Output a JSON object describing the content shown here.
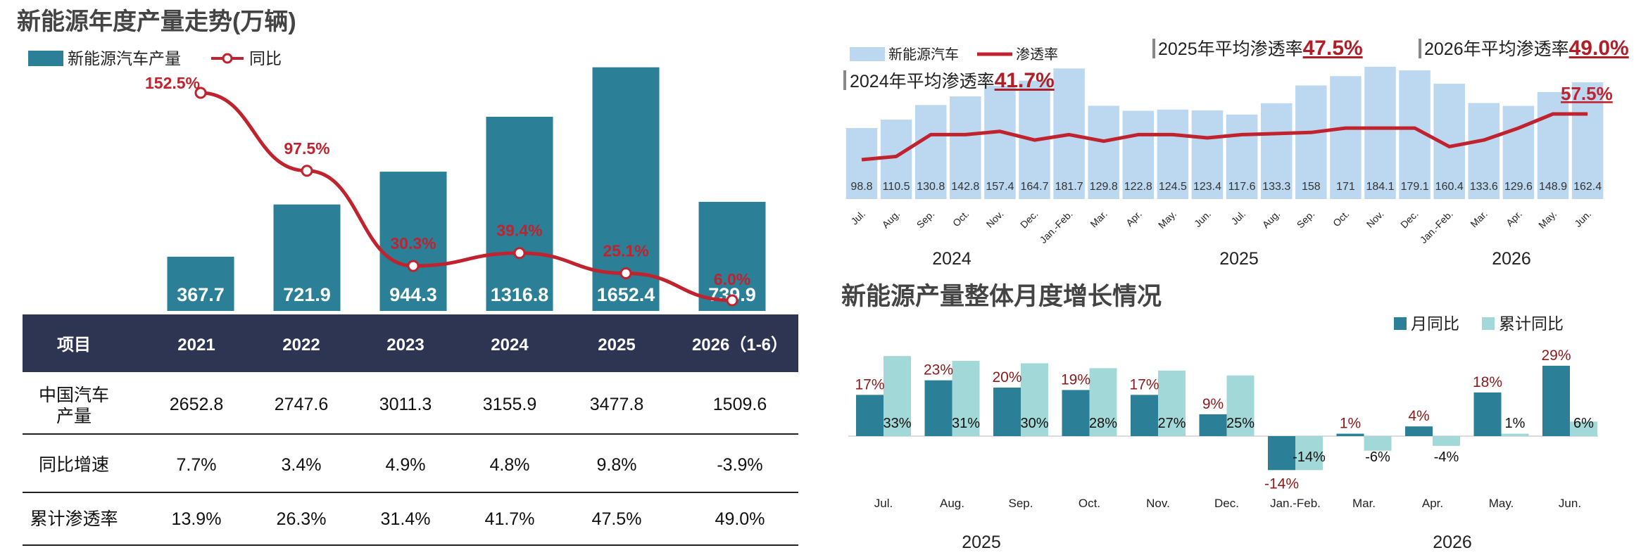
{
  "annual": {
    "title": "新能源年度产量走势(万辆)",
    "legend_bar": "新能源汽车产量",
    "legend_line": "同比",
    "bar_color": "#2b7f96",
    "line_color": "#c0232d"
  },
  "monthly_pen": {
    "legend_bar": "新能源汽车",
    "legend_line": "渗透率",
    "bar_color": "#bcd8f0",
    "line_color": "#c0232d",
    "avg_2024_prefix": "2024年平均渗透率",
    "avg_2024_value": "41.7%",
    "avg_2025_prefix": "2025年平均渗透率",
    "avg_2025_value": "47.5%",
    "avg_2026_prefix": "2026年平均渗透率",
    "avg_2026_value": "49.0%",
    "last_rate_label": "57.5%",
    "years": [
      "2024",
      "2025",
      "2026"
    ]
  },
  "growth": {
    "title": "新能源产量整体月度增长情况",
    "legend_a": "月同比",
    "legend_b": "累计同比",
    "color_a": "#2b7f96",
    "color_b": "#a3d8d8",
    "years": [
      "2025",
      "2026"
    ]
  },
  "table": {
    "header": [
      "项目",
      "2021",
      "2022",
      "2023",
      "2024",
      "2025",
      "2026（1-6）"
    ],
    "rows": [
      [
        "中国汽车产量",
        "2652.8",
        "2747.6",
        "3011.3",
        "3155.9",
        "3477.8",
        "1509.6"
      ],
      [
        "同比增速",
        "7.7%",
        "3.4%",
        "4.9%",
        "4.8%",
        "9.8%",
        "-3.9%"
      ],
      [
        "累计渗透率",
        "13.9%",
        "26.3%",
        "31.4%",
        "41.7%",
        "47.5%",
        "49.0%"
      ]
    ],
    "header_bg": "#2d3553"
  },
  "chart_data": [
    {
      "type": "bar",
      "title": "新能源年度产量走势(万辆)",
      "categories": [
        "2021",
        "2022",
        "2023",
        "2024",
        "2025",
        "2026"
      ],
      "series": [
        {
          "name": "新能源汽车产量",
          "type": "bar",
          "values": [
            367.7,
            721.9,
            944.3,
            1316.8,
            1652.4,
            739.9
          ],
          "labels": [
            "367.7",
            "721.9",
            "944.3",
            "1316.8",
            "1652.4",
            "739.9"
          ]
        },
        {
          "name": "同比",
          "type": "line",
          "values": [
            152.5,
            97.5,
            30.3,
            39.4,
            25.1,
            6.0
          ],
          "labels": [
            "152.5%",
            "97.5%",
            "30.3%",
            "39.4%",
            "25.1%",
            "6.0%"
          ]
        }
      ]
    },
    {
      "type": "bar",
      "categories": [
        "Jul.",
        "Aug.",
        "Sep.",
        "Oct.",
        "Nov.",
        "Dec.",
        "Jan.-Feb.",
        "Mar.",
        "Apr.",
        "May.",
        "Jun.",
        "Jul.",
        "Aug.",
        "Sep.",
        "Oct.",
        "Nov.",
        "Dec.",
        "Jan.-Feb.",
        "Mar.",
        "Apr.",
        "May.",
        "Jun."
      ],
      "series": [
        {
          "name": "新能源汽车",
          "type": "bar",
          "values": [
            98.8,
            110.5,
            130.8,
            142.8,
            157.4,
            164.7,
            181.7,
            129.8,
            122.8,
            124.5,
            123.4,
            117.6,
            133.3,
            158,
            171,
            184.1,
            179.1,
            160.4,
            133.6,
            129.6,
            148.9,
            162.4
          ],
          "labels": [
            "98.8",
            "110.5",
            "130.8",
            "142.8",
            "157.4",
            "164.7",
            "181.7",
            "129.8",
            "122.8",
            "124.5",
            "123.4",
            "117.6",
            "133.3",
            "158",
            "171",
            "184.1",
            "179.1",
            "160.4",
            "133.6",
            "129.6",
            "148.9",
            "162.4"
          ]
        },
        {
          "name": "渗透率",
          "type": "line",
          "values": [
            36.5,
            38.0,
            48.0,
            48.0,
            49.5,
            45.5,
            48.0,
            45.0,
            48.0,
            48.0,
            46.5,
            48.0,
            48.5,
            49.0,
            51.0,
            51.0,
            51.0,
            42.5,
            45.5,
            51.0,
            57.5,
            57.5
          ]
        }
      ],
      "annotations": [
        "2024年平均渗透率41.7%",
        "2025年平均渗透率47.5%",
        "2026年平均渗透率49.0%"
      ]
    },
    {
      "type": "bar",
      "title": "新能源产量整体月度增长情况",
      "categories": [
        "Jul.",
        "Aug.",
        "Sep.",
        "Oct.",
        "Nov.",
        "Dec.",
        "Jan.-Feb.",
        "Mar.",
        "Apr.",
        "May.",
        "Jun."
      ],
      "series": [
        {
          "name": "月同比",
          "values": [
            17,
            23,
            20,
            19,
            17,
            9,
            -14,
            1,
            4,
            18,
            29
          ],
          "labels": [
            "17%",
            "23%",
            "20%",
            "19%",
            "17%",
            "9%",
            "-14%",
            "1%",
            "4%",
            "18%",
            "29%"
          ]
        },
        {
          "name": "累计同比",
          "values": [
            33,
            31,
            30,
            28,
            27,
            25,
            -14,
            -6,
            -4,
            1,
            6
          ],
          "labels": [
            "33%",
            "31%",
            "30%",
            "28%",
            "27%",
            "25%",
            "-14%",
            "-6%",
            "-4%",
            "1%",
            "6%"
          ]
        }
      ]
    }
  ]
}
